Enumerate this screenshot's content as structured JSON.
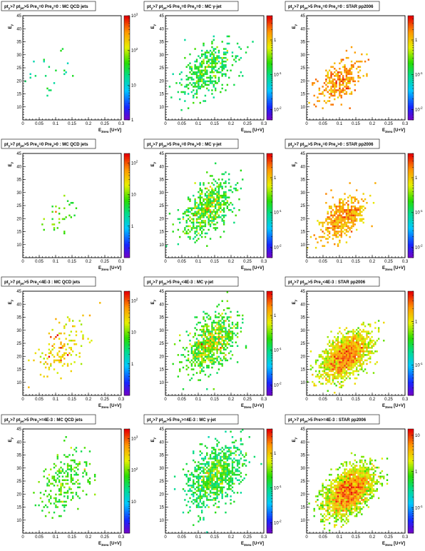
{
  "figure": {
    "xlabel": "E_{3neu} [U+V]",
    "ylabel": "E_{y}",
    "xticks": [
      "0",
      "0.05",
      "0.1",
      "0.15",
      "0.2",
      "0.25",
      "0.3"
    ],
    "yticks": [
      "10",
      "15",
      "20",
      "25",
      "30",
      "35",
      "40",
      "45"
    ],
    "xlim": [
      0,
      0.3
    ],
    "ylim": [
      5,
      45
    ]
  },
  "chart_data": [
    {
      "type": "heatmap",
      "title": "pt_{γ}>7 pt_{jet}>5 Pre_{1}=0 Pre_{2}=0 : MC QCD jets",
      "xlabel": "E_{3neu} [U+V]",
      "ylabel": "E_{y}",
      "xlim": [
        0,
        0.3
      ],
      "ylim": [
        5,
        45
      ],
      "zscale": "log",
      "colorbar_ticks": [
        "1",
        "10",
        "10^{2}",
        "10^{3}"
      ],
      "zrange": [
        1,
        1000
      ],
      "density": {
        "count": 22,
        "center": [
          0.09,
          24
        ],
        "spread": [
          0.06,
          9
        ],
        "zmin_frac": 0.05,
        "zmax_frac": 0.45,
        "palette": "mixed"
      }
    },
    {
      "type": "heatmap",
      "title": "pt_{γ}>7 pt_{jet}>5 Pre_{1}=0 Pre_{2}=0 : MC γ-jet",
      "xlabel": "E_{3neu} [U+V]",
      "ylabel": "E_{y}",
      "xlim": [
        0,
        0.3
      ],
      "ylim": [
        5,
        45
      ],
      "zscale": "log",
      "colorbar_ticks": [
        "10^{-2}",
        "10^{-1}",
        "1"
      ],
      "zrange": [
        0.005,
        5
      ],
      "density": {
        "count": 420,
        "center": [
          0.13,
          24
        ],
        "spread": [
          0.07,
          8
        ],
        "zmin_frac": 0.3,
        "zmax_frac": 0.8,
        "palette": "green"
      }
    },
    {
      "type": "heatmap",
      "title": "pt_{γ}>7 pt_{jet}>5 Pre_{1}=0 Pre_{2}=0 : STAR pp2006",
      "xlabel": "E_{3neu} [U+V]",
      "ylabel": "E_{y}",
      "xlim": [
        0,
        0.3
      ],
      "ylim": [
        5,
        45
      ],
      "zscale": "log",
      "colorbar_ticks": [
        "10^{-2}",
        "10^{-1}",
        "1"
      ],
      "zrange": [
        0.005,
        5
      ],
      "density": {
        "count": 330,
        "center": [
          0.1,
          20
        ],
        "spread": [
          0.055,
          6
        ],
        "zmin_frac": 0.74,
        "zmax_frac": 0.92,
        "palette": "orange"
      }
    },
    {
      "type": "heatmap",
      "title": "pt_{γ}>7 pt_{jet}>5 Pre_{1}=0 Pre_{2}>0 : MC QCD jets",
      "xlabel": "E_{3neu} [U+V]",
      "ylabel": "E_{y}",
      "xlim": [
        0,
        0.3
      ],
      "ylim": [
        5,
        45
      ],
      "zscale": "log",
      "colorbar_ticks": [
        "1",
        "10",
        "10^{2}"
      ],
      "zrange": [
        0.1,
        200
      ],
      "density": {
        "count": 35,
        "center": [
          0.12,
          22
        ],
        "spread": [
          0.05,
          6
        ],
        "zmin_frac": 0.3,
        "zmax_frac": 0.95,
        "palette": "mixed"
      }
    },
    {
      "type": "heatmap",
      "title": "pt_{γ}>7 pt_{jet}>5 Pre_{1}=0 Pre_{2}>0 : MC γ-jet",
      "xlabel": "E_{3neu} [U+V]",
      "ylabel": "E_{y}",
      "xlim": [
        0,
        0.3
      ],
      "ylim": [
        5,
        45
      ],
      "zscale": "log",
      "colorbar_ticks": [
        "10^{-2}",
        "10^{-1}",
        "1"
      ],
      "zrange": [
        0.005,
        5
      ],
      "density": {
        "count": 620,
        "center": [
          0.13,
          24
        ],
        "spread": [
          0.065,
          8
        ],
        "zmin_frac": 0.3,
        "zmax_frac": 0.9,
        "palette": "green"
      }
    },
    {
      "type": "heatmap",
      "title": "pt_{γ}>7 pt_{jet}>5 Pre_{1}=0 Pre_{2}>0 : STAR pp2006",
      "xlabel": "E_{3neu} [U+V]",
      "ylabel": "E_{y}",
      "xlim": [
        0,
        0.3
      ],
      "ylim": [
        5,
        45
      ],
      "zscale": "log",
      "colorbar_ticks": [
        "10^{-2}",
        "10^{-1}",
        "1"
      ],
      "zrange": [
        0.005,
        5
      ],
      "density": {
        "count": 520,
        "center": [
          0.11,
          20
        ],
        "spread": [
          0.055,
          6
        ],
        "zmin_frac": 0.72,
        "zmax_frac": 0.93,
        "palette": "orange"
      }
    },
    {
      "type": "heatmap",
      "title": "pt_{γ}>7 pt_{jet}>5 Pre_{1}<4E-3 : MC QCD jets",
      "xlabel": "E_{3neu} [U+V]",
      "ylabel": "E_{y}",
      "xlim": [
        0,
        0.3
      ],
      "ylim": [
        5,
        45
      ],
      "zscale": "log",
      "colorbar_ticks": [
        "1",
        "10",
        "10^{2}"
      ],
      "zrange": [
        0.1,
        200
      ],
      "density": {
        "count": 140,
        "center": [
          0.12,
          23
        ],
        "spread": [
          0.07,
          8
        ],
        "zmin_frac": 0.35,
        "zmax_frac": 0.95,
        "palette": "mixed"
      }
    },
    {
      "type": "heatmap",
      "title": "pt_{γ}>7 pt_{jet}>5 Pre_{1}<4E-3 : MC γ-jet",
      "xlabel": "E_{3neu} [U+V]",
      "ylabel": "E_{y}",
      "xlim": [
        0,
        0.3
      ],
      "ylim": [
        5,
        45
      ],
      "zscale": "log",
      "colorbar_ticks": [
        "10^{-2}",
        "10^{-1}",
        "1"
      ],
      "zrange": [
        0.005,
        5
      ],
      "density": {
        "count": 800,
        "center": [
          0.14,
          25
        ],
        "spread": [
          0.065,
          8
        ],
        "zmin_frac": 0.3,
        "zmax_frac": 0.92,
        "palette": "green"
      }
    },
    {
      "type": "heatmap",
      "title": "pt_{γ}>7 pt_{jet}>5 Pre_{1}<4E-3 : STAR pp2006",
      "xlabel": "E_{3neu} [U+V]",
      "ylabel": "E_{y}",
      "xlim": [
        0,
        0.3
      ],
      "ylim": [
        5,
        45
      ],
      "zscale": "log",
      "colorbar_ticks": [
        "10^{-1}",
        "1"
      ],
      "zrange": [
        0.02,
        5
      ],
      "density": {
        "count": 1900,
        "center": [
          0.12,
          20
        ],
        "spread": [
          0.06,
          6.5
        ],
        "zmin_frac": 0.55,
        "zmax_frac": 0.97,
        "palette": "hot"
      }
    },
    {
      "type": "heatmap",
      "title": "pt_{γ}>7 pt_{jet}>5 Pre_{1}>=4E-3 : MC QCD jets",
      "xlabel": "E_{3neu} [U+V]",
      "ylabel": "E_{y}",
      "xlim": [
        0,
        0.3
      ],
      "ylim": [
        5,
        45
      ],
      "zscale": "log",
      "colorbar_ticks": [
        "10",
        "10^{2}",
        "10^{3}"
      ],
      "zrange": [
        1,
        2000
      ],
      "density": {
        "count": 260,
        "center": [
          0.13,
          25
        ],
        "spread": [
          0.065,
          9
        ],
        "zmin_frac": 0.35,
        "zmax_frac": 0.75,
        "palette": "cyan"
      }
    },
    {
      "type": "heatmap",
      "title": "pt_{γ}>7 pt_{jet}>5 Pre_{1}>=4E-3 : MC γ-jet",
      "xlabel": "E_{3neu} [U+V]",
      "ylabel": "E_{y}",
      "xlim": [
        0,
        0.3
      ],
      "ylim": [
        5,
        45
      ],
      "zscale": "log",
      "colorbar_ticks": [
        "10^{-2}",
        "10^{-1}",
        "1"
      ],
      "zrange": [
        0.005,
        5
      ],
      "density": {
        "count": 900,
        "center": [
          0.15,
          27
        ],
        "spread": [
          0.07,
          9
        ],
        "zmin_frac": 0.3,
        "zmax_frac": 0.85,
        "palette": "green"
      }
    },
    {
      "type": "heatmap",
      "title": "pt_{γ}>7 pt_{jet}>5 Pre>=4E-3 : STAR pp2006",
      "xlabel": "E_{3neu} [U+V]",
      "ylabel": "E_{y}",
      "xlim": [
        0,
        0.3
      ],
      "ylim": [
        5,
        45
      ],
      "zscale": "log",
      "colorbar_ticks": [
        "10^{-1}",
        "1",
        "10"
      ],
      "zrange": [
        0.02,
        15
      ],
      "density": {
        "count": 2600,
        "center": [
          0.13,
          21
        ],
        "spread": [
          0.06,
          7
        ],
        "zmin_frac": 0.5,
        "zmax_frac": 0.99,
        "palette": "hot"
      }
    }
  ]
}
